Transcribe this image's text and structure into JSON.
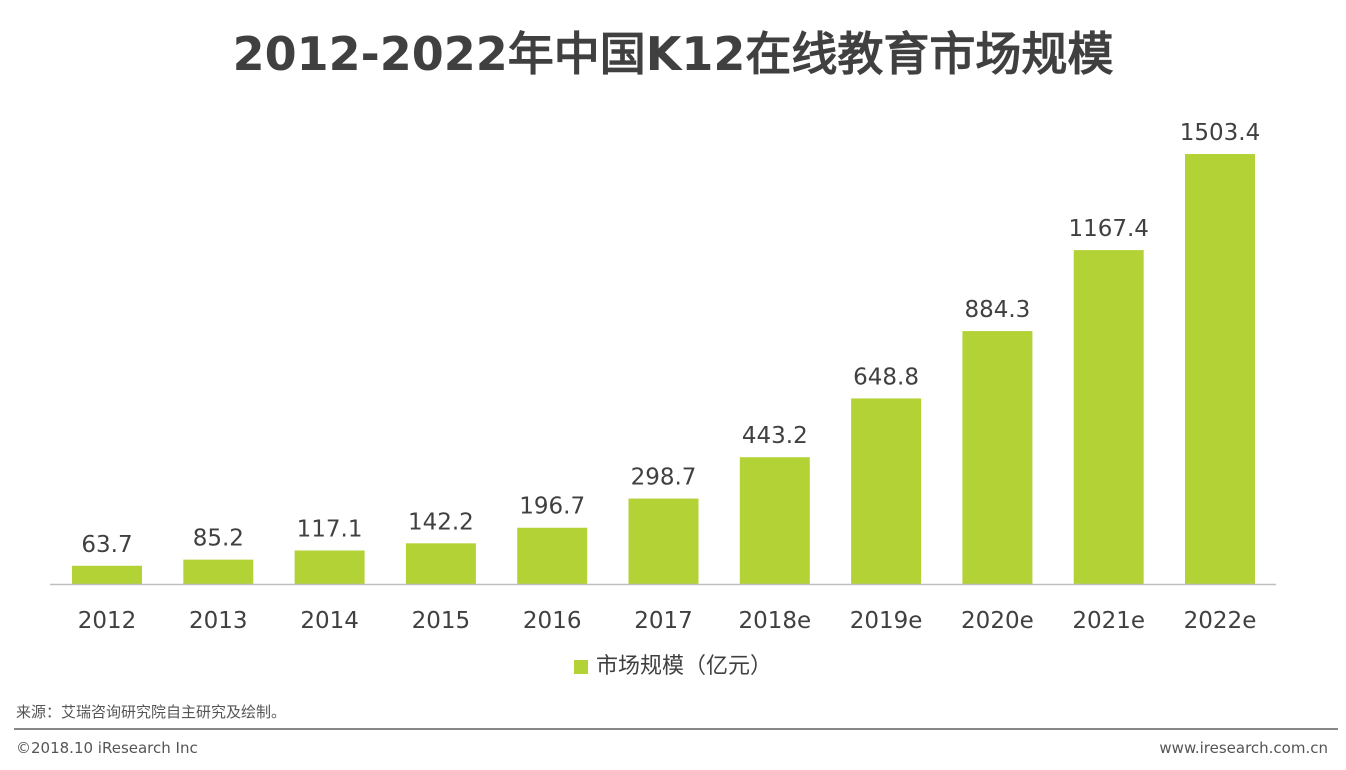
{
  "chart_data": {
    "type": "bar",
    "title": "2012-2022年中国K12在线教育市场规模",
    "categories": [
      "2012",
      "2013",
      "2014",
      "2015",
      "2016",
      "2017",
      "2018e",
      "2019e",
      "2020e",
      "2021e",
      "2022e"
    ],
    "series": [
      {
        "name": "市场规模（亿元）",
        "values": [
          63.7,
          85.2,
          117.1,
          142.2,
          196.7,
          298.7,
          443.2,
          648.8,
          884.3,
          1167.4,
          1503.4
        ],
        "color": "#b2d235"
      }
    ],
    "xlabel": "",
    "ylabel": "",
    "ylim": [
      0,
      1503.4
    ],
    "grid": false,
    "legend": "bottom"
  },
  "footer": {
    "source": "来源：艾瑞咨询研究院自主研究及绘制。",
    "copyright": "©2018.10 iResearch Inc",
    "url": "www.iresearch.com.cn"
  }
}
